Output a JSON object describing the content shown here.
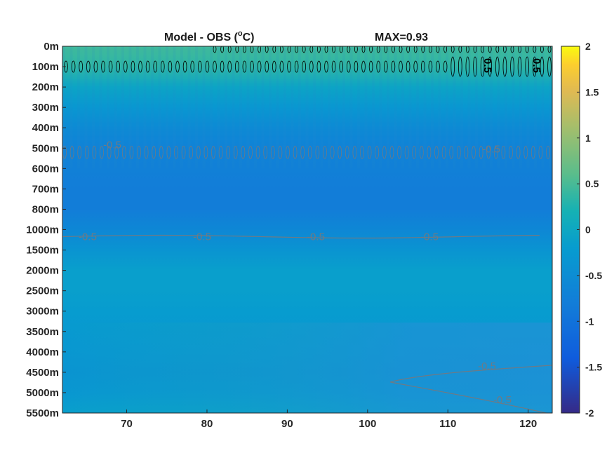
{
  "chart_data": {
    "type": "heatmap",
    "title": "Model - OBS (°C)",
    "title_main": "Model - OBS (",
    "title_sup": "o",
    "title_end": "C)",
    "annotation": "MAX=0.93",
    "xlabel": "",
    "ylabel": "",
    "xlim": [
      62,
      123
    ],
    "x_ticks": [
      70,
      80,
      90,
      100,
      110,
      120
    ],
    "y_tick_labels": [
      "0m",
      "100m",
      "200m",
      "300m",
      "400m",
      "500m",
      "600m",
      "700m",
      "800m",
      "1000m",
      "1500m",
      "2000m",
      "2500m",
      "3000m",
      "3500m",
      "4000m",
      "4500m",
      "5000m",
      "5500m"
    ],
    "colorbar": {
      "clim": [
        -2,
        2
      ],
      "ticks": [
        2,
        1.5,
        1,
        0.5,
        0,
        -0.5,
        -1,
        -1.5,
        -2
      ],
      "tick_labels": [
        "2",
        "1.5",
        "1",
        "0.5",
        "0",
        "-0.5",
        "-1",
        "-1.5",
        "-2"
      ],
      "colormap": "parula"
    },
    "depth_profile": {
      "level_index": [
        0,
        1,
        2,
        3,
        4,
        5,
        6,
        7,
        8,
        9,
        10,
        11,
        12,
        13,
        14,
        15,
        16,
        17,
        18
      ],
      "value": [
        0.45,
        0.35,
        -0.05,
        -0.3,
        -0.55,
        -0.7,
        -0.75,
        -0.8,
        -0.8,
        -0.6,
        -0.35,
        -0.15,
        -0.15,
        -0.2,
        -0.25,
        -0.3,
        -0.35,
        -0.3,
        -0.15
      ]
    },
    "contours": [
      {
        "level": 0.5,
        "color": "#000000",
        "labels": [
          "0.5",
          "0.5"
        ]
      },
      {
        "level": -0.5,
        "color": "#6f7a84",
        "labels": [
          "-0.5",
          "-0.5",
          "-0.5",
          "-0.5",
          "-0.5",
          "-0.5",
          "-0.5"
        ]
      }
    ],
    "grid": false
  }
}
